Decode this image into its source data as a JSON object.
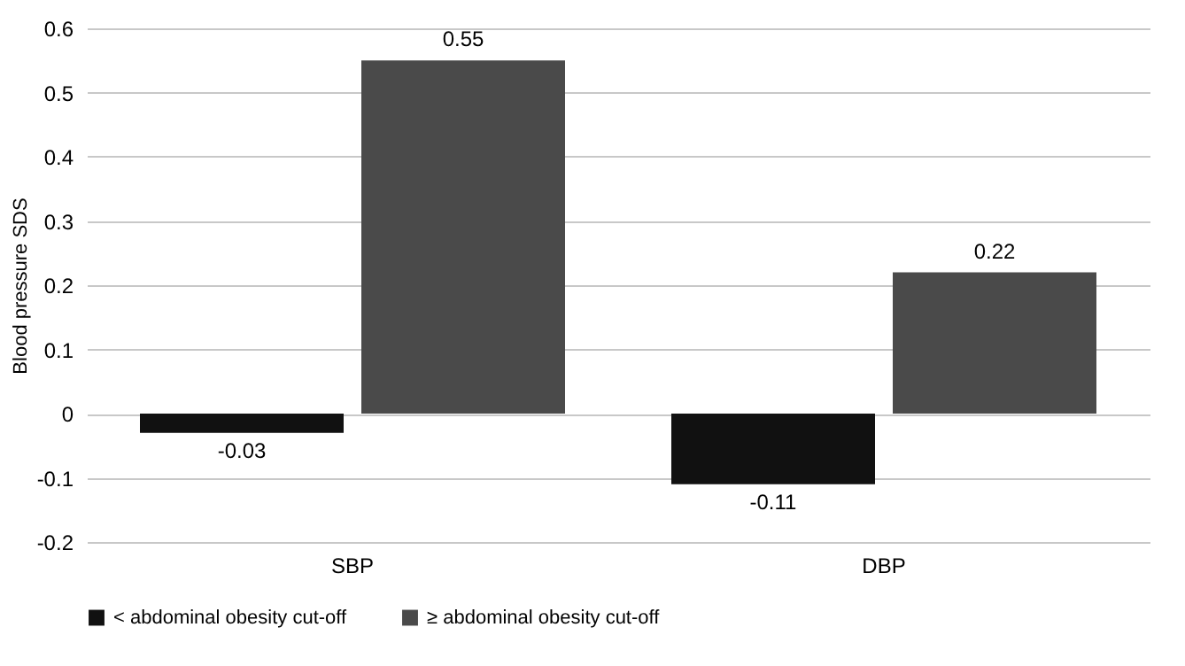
{
  "chart_data": {
    "type": "bar",
    "ylabel": "Blood pressure SDS",
    "categories": [
      "SBP",
      "DBP"
    ],
    "series": [
      {
        "name": "< abdominal obesity cut-off",
        "color": "#111111",
        "values": [
          -0.03,
          -0.11
        ]
      },
      {
        "name": "≥ abdominal obesity cut-off",
        "color": "#4a4a4a",
        "values": [
          0.55,
          0.22
        ]
      }
    ],
    "ylim": [
      -0.2,
      0.6
    ],
    "yticks": [
      -0.2,
      -0.1,
      0,
      0.1,
      0.2,
      0.3,
      0.4,
      0.5,
      0.6
    ],
    "grid": "y",
    "legend": "bottom",
    "data_labels": true
  }
}
